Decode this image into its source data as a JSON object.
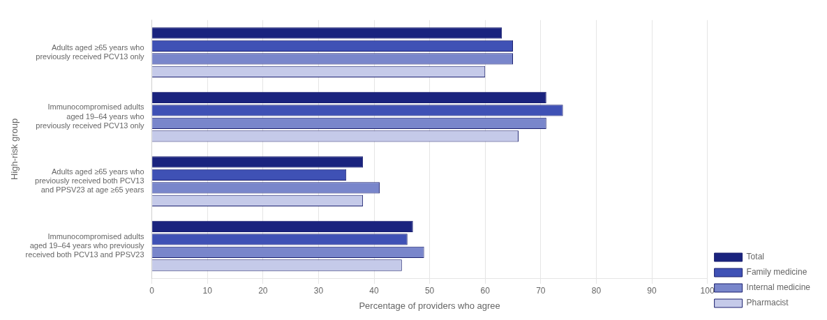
{
  "chart_data": {
    "type": "bar",
    "orientation": "horizontal",
    "categories": [
      "Adults aged ≥65 years who\npreviously received PCV13 only",
      "Immunocompromised adults\naged 19–64 years who\npreviously received PCV13 only",
      "Adults aged ≥65 years who\npreviously received both PCV13\nand PPSV23 at age ≥65 years",
      "Immunocompromised adults\naged 19–64 years who previously\nreceived both PCV13 and PPSV23"
    ],
    "series": [
      {
        "name": "Total",
        "color": "#1a237e",
        "values": [
          63,
          71,
          38,
          47
        ]
      },
      {
        "name": "Family medicine",
        "color": "#3f51b5",
        "values": [
          65,
          74,
          35,
          46
        ]
      },
      {
        "name": "Internal medicine",
        "color": "#7986cb",
        "values": [
          65,
          71,
          41,
          49
        ]
      },
      {
        "name": "Pharmacist",
        "color": "#c5cae9",
        "values": [
          60,
          66,
          38,
          45
        ]
      }
    ],
    "x_label": "Percentage of providers who agree",
    "y_label": "High-risk group",
    "xlim": [
      0,
      100
    ],
    "xticks": [
      0,
      10,
      20,
      30,
      40,
      50,
      60,
      70,
      80,
      90,
      100
    ],
    "grid": "x",
    "legend": "lower right"
  }
}
